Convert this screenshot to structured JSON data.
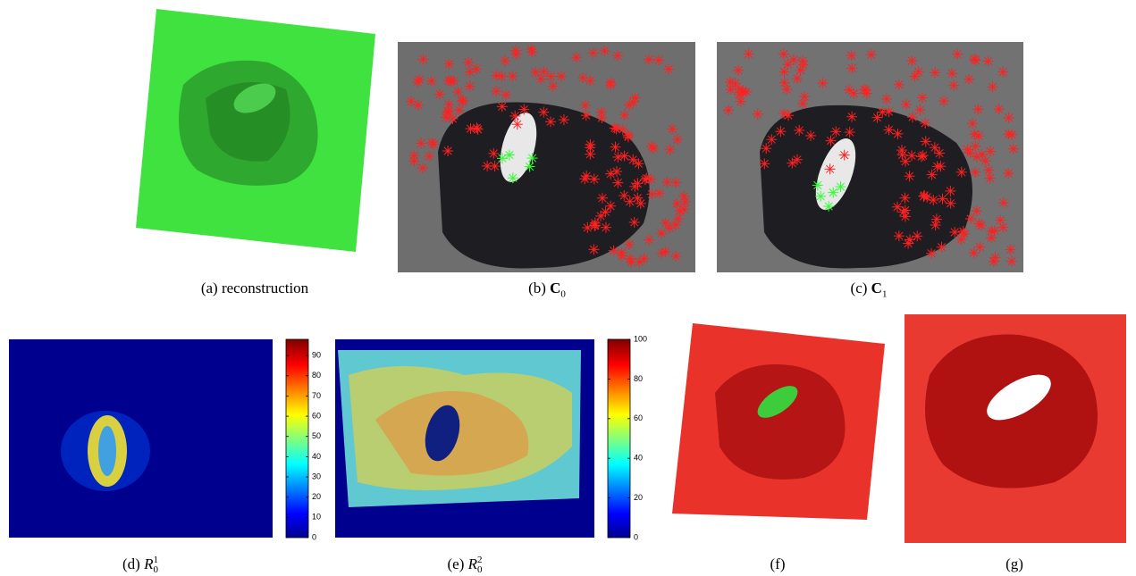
{
  "panels": [
    {
      "label": "(a)",
      "text": "reconstruction"
    },
    {
      "label": "(b)",
      "symbol": "C",
      "sub": "0"
    },
    {
      "label": "(c)",
      "symbol": "C",
      "sub": "1"
    },
    {
      "label": "(d)",
      "symbol": "R",
      "sub": "0",
      "sup": "1",
      "colorbar": {
        "ylim": [
          0,
          98
        ],
        "yticks": [
          0,
          10,
          20,
          30,
          40,
          50,
          60,
          70,
          80,
          90
        ]
      }
    },
    {
      "label": "(e)",
      "symbol": "R",
      "sub": "0",
      "sup": "2",
      "colorbar": {
        "ylim": [
          0,
          100
        ],
        "yticks": [
          0,
          20,
          40,
          60,
          80,
          100
        ]
      }
    },
    {
      "label": "(f)"
    },
    {
      "label": "(g)"
    }
  ]
}
